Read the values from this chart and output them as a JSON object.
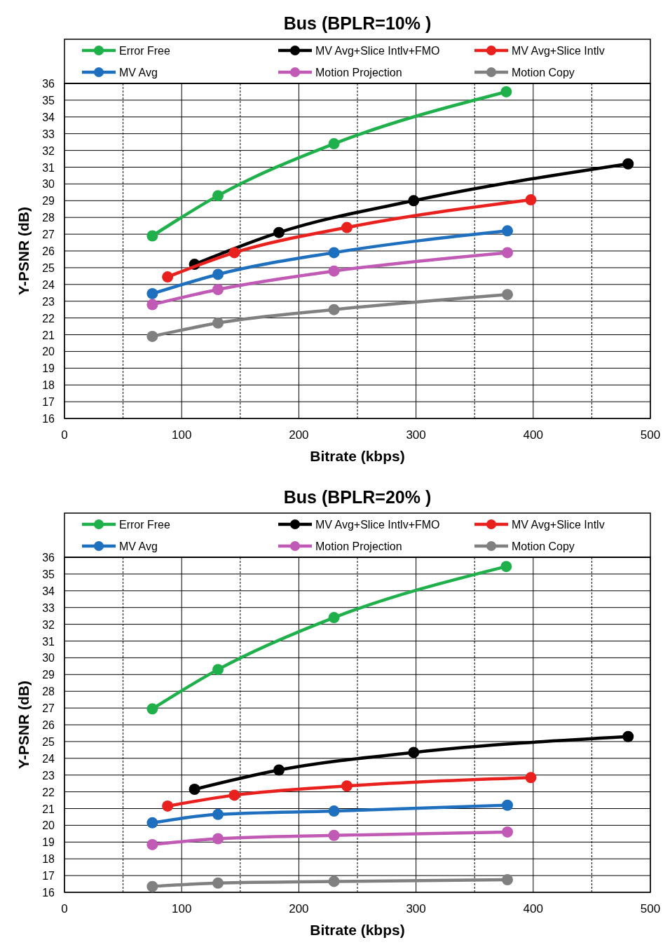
{
  "chart_data": [
    {
      "type": "line",
      "title": "Bus (BPLR=10% )",
      "xlabel": "Bitrate (kbps)",
      "ylabel": "Y-PSNR (dB)",
      "xlim": [
        0,
        500
      ],
      "ylim": [
        16,
        36
      ],
      "xticks": [
        0,
        {
          "value": 50,
          "label": null
        },
        100,
        {
          "value": 150,
          "label": null
        },
        200,
        {
          "value": 250,
          "label": null
        },
        300,
        {
          "value": 350,
          "label": null
        },
        400,
        {
          "value": 450,
          "label": null
        },
        500
      ],
      "yticks": [
        16,
        17,
        18,
        19,
        20,
        21,
        22,
        23,
        24,
        25,
        26,
        27,
        28,
        29,
        30,
        31,
        32,
        33,
        34,
        35,
        36
      ],
      "grid": true,
      "legend": "top",
      "marker": "circle",
      "line_style": "solid",
      "series": [
        {
          "name": "Error Free",
          "color": "#1fb04b",
          "x": [
            75,
            131,
            230,
            377
          ],
          "values": [
            26.9,
            29.3,
            32.4,
            35.5
          ]
        },
        {
          "name": "MV Avg+Slice Intlv+FMO",
          "color": "#000000",
          "x": [
            111,
            183,
            298,
            481
          ],
          "values": [
            25.2,
            27.1,
            29.0,
            31.2
          ]
        },
        {
          "name": "MV Avg+Slice Intlv",
          "color": "#e8211f",
          "x": [
            88,
            145,
            241,
            398
          ],
          "values": [
            24.45,
            25.9,
            27.4,
            29.05
          ]
        },
        {
          "name": "MV Avg",
          "color": "#1f6fbf",
          "x": [
            75,
            131,
            230,
            378
          ],
          "values": [
            23.45,
            24.6,
            25.9,
            27.2
          ]
        },
        {
          "name": "Motion Projection",
          "color": "#c05ab4",
          "x": [
            75,
            131,
            230,
            378
          ],
          "values": [
            22.8,
            23.7,
            24.8,
            25.9
          ]
        },
        {
          "name": "Motion Copy",
          "color": "#808080",
          "x": [
            75,
            131,
            230,
            378
          ],
          "values": [
            20.9,
            21.7,
            22.5,
            23.4
          ]
        }
      ]
    },
    {
      "type": "line",
      "title": "Bus (BPLR=20% )",
      "xlabel": "Bitrate (kbps)",
      "ylabel": "Y-PSNR (dB)",
      "xlim": [
        0,
        500
      ],
      "ylim": [
        16,
        36
      ],
      "xticks": [
        0,
        {
          "value": 50,
          "label": null
        },
        100,
        {
          "value": 150,
          "label": null
        },
        200,
        {
          "value": 250,
          "label": null
        },
        300,
        {
          "value": 350,
          "label": null
        },
        400,
        {
          "value": 450,
          "label": null
        },
        500
      ],
      "yticks": [
        16,
        17,
        18,
        19,
        20,
        21,
        22,
        23,
        24,
        25,
        26,
        27,
        28,
        29,
        30,
        31,
        32,
        33,
        34,
        35,
        36
      ],
      "grid": true,
      "legend": "top",
      "marker": "circle",
      "line_style": "solid",
      "series": [
        {
          "name": "Error Free",
          "color": "#1fb04b",
          "x": [
            75,
            131,
            230,
            377
          ],
          "values": [
            26.95,
            29.3,
            32.4,
            35.45
          ]
        },
        {
          "name": "MV Avg+Slice Intlv+FMO",
          "color": "#000000",
          "x": [
            111,
            183,
            298,
            481
          ],
          "values": [
            22.15,
            23.3,
            24.35,
            25.3
          ]
        },
        {
          "name": "MV Avg+Slice Intlv",
          "color": "#e8211f",
          "x": [
            88,
            145,
            241,
            398
          ],
          "values": [
            21.15,
            21.8,
            22.35,
            22.85
          ]
        },
        {
          "name": "MV Avg",
          "color": "#1f6fbf",
          "x": [
            75,
            131,
            230,
            378
          ],
          "values": [
            20.15,
            20.65,
            20.85,
            21.2
          ]
        },
        {
          "name": "Motion Projection",
          "color": "#c05ab4",
          "x": [
            75,
            131,
            230,
            378
          ],
          "values": [
            18.85,
            19.2,
            19.4,
            19.6
          ]
        },
        {
          "name": "Motion Copy",
          "color": "#808080",
          "x": [
            75,
            131,
            230,
            378
          ],
          "values": [
            16.35,
            16.55,
            16.65,
            16.75
          ]
        }
      ]
    }
  ]
}
